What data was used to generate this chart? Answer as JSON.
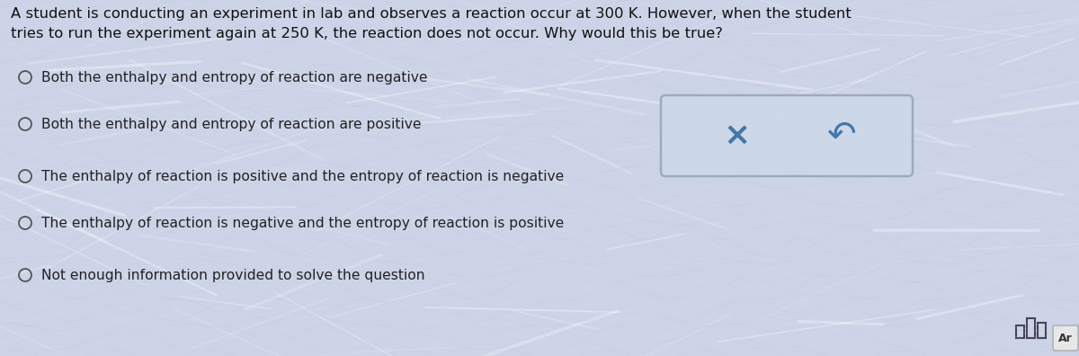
{
  "question": "A student is conducting an experiment in lab and observes a reaction occur at 300 K. However, when the student\ntries to run the experiment again at 250 K, the reaction does not occur. Why would this be true?",
  "options": [
    "Both the enthalpy and entropy of reaction are negative",
    "Both the enthalpy and entropy of reaction are positive",
    "The enthalpy of reaction is positive and the entropy of reaction is negative",
    "The enthalpy of reaction is negative and the entropy of reaction is positive",
    "Not enough information provided to solve the question"
  ],
  "bg_color": "#cdd4e8",
  "question_text_color": "#111111",
  "option_text_color": "#222222",
  "radio_color": "#555555",
  "box_bg": "#ccd8e8",
  "box_border": "#99aabb",
  "x_color": "#4477aa",
  "arrow_color": "#4477aa",
  "ar_box_color": "#e8e8e8",
  "ar_text_color": "#333333",
  "bar_icon_color": "#444455",
  "wave_color": "#c0c8dd"
}
